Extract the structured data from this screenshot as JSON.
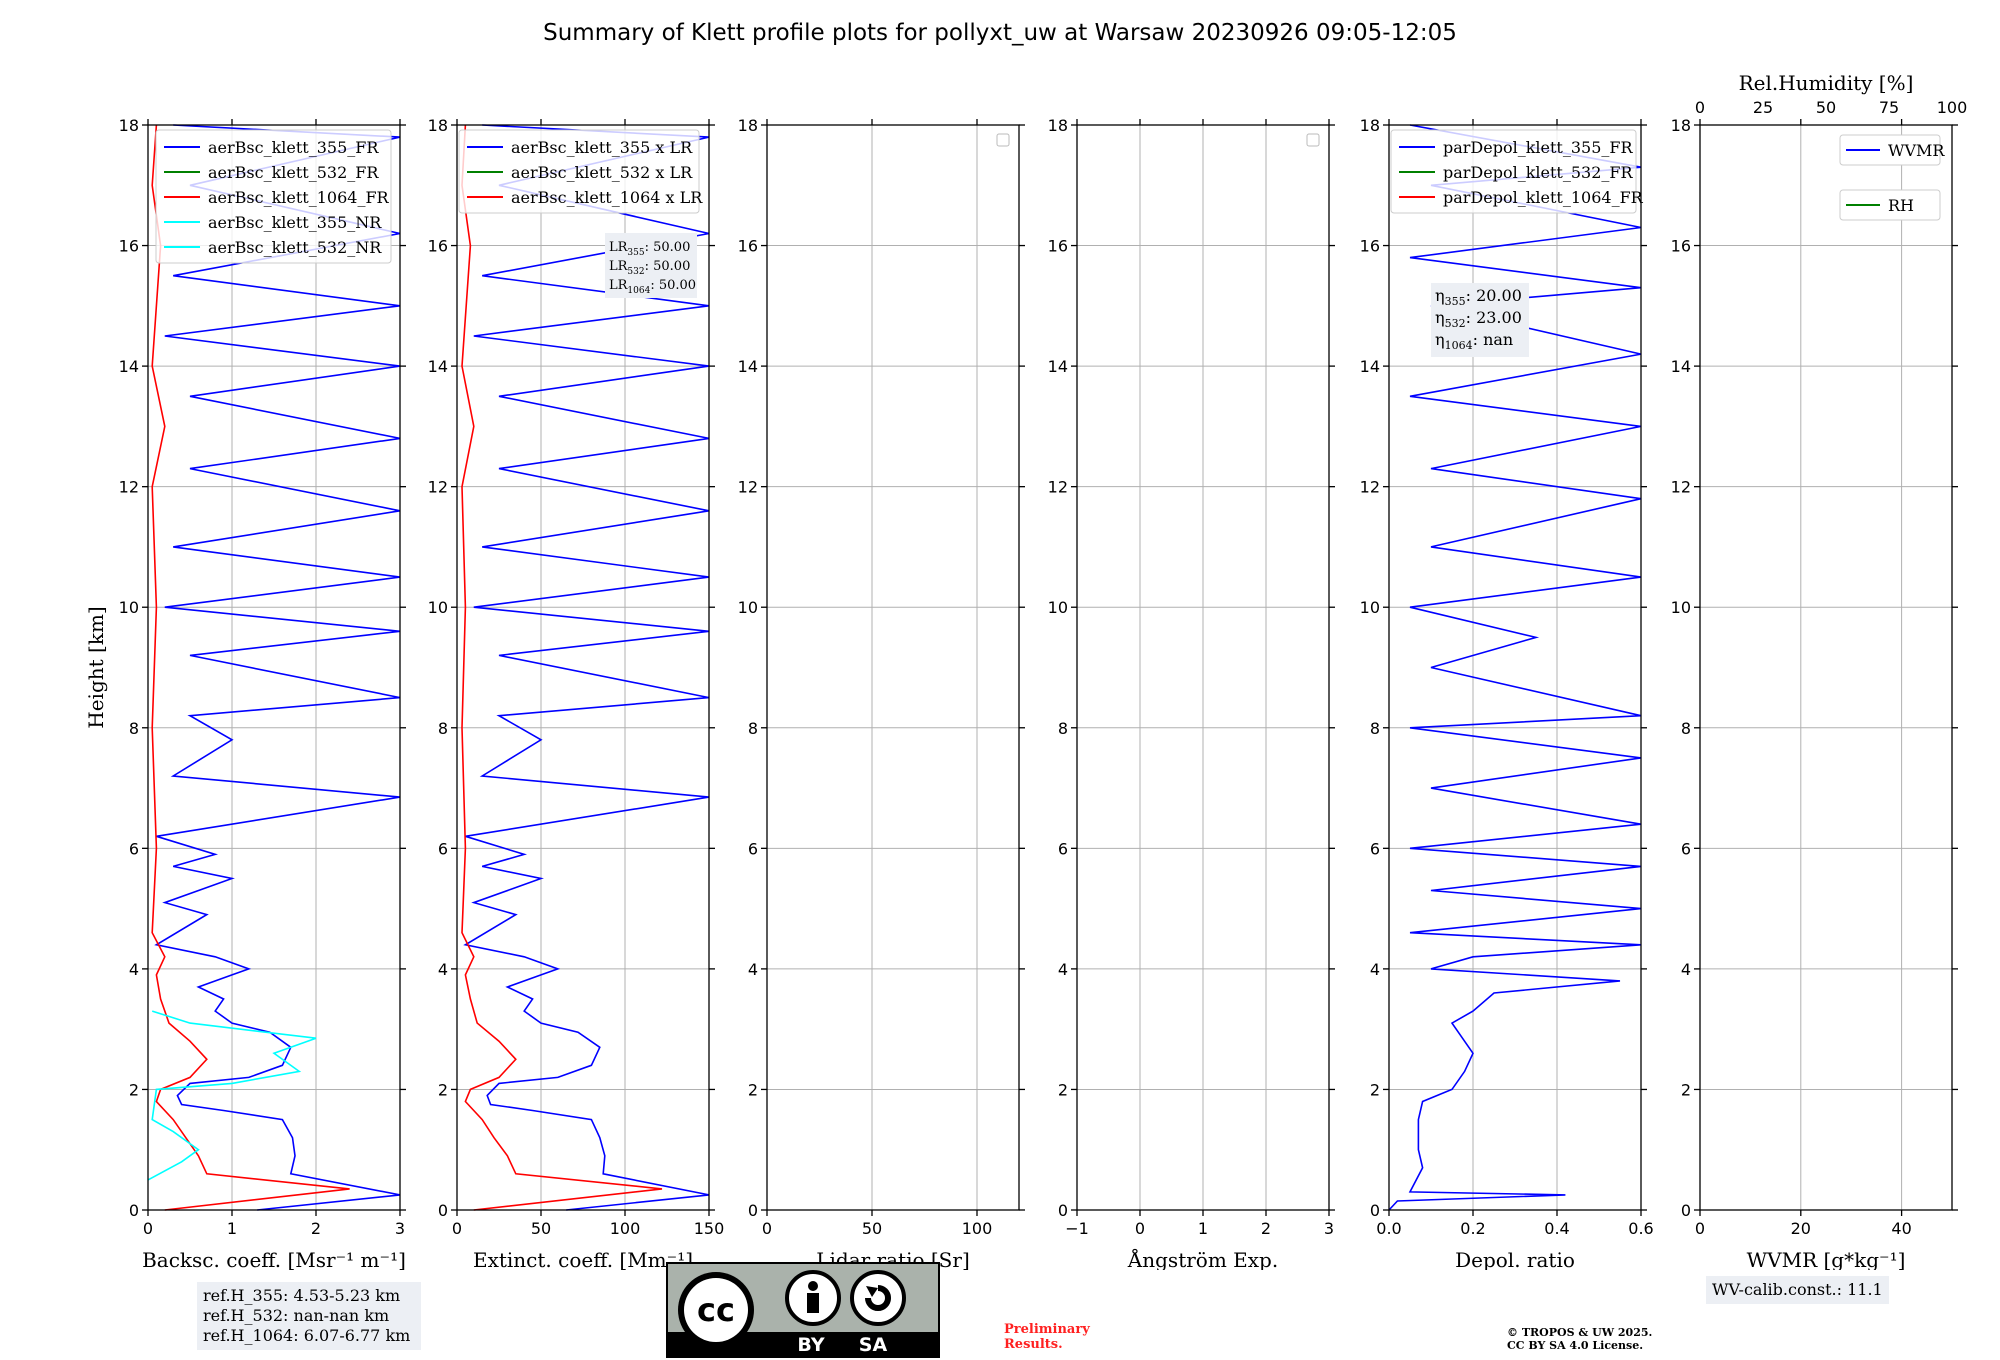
{
  "title": "Summary of Klett profile plots for pollyxt_uw at Warsaw 20230926 09:05-12:05",
  "colors": {
    "blue": "#0000ff",
    "green": "#008000",
    "red": "#ff0000",
    "cyan": "#00ffff",
    "grid": "#b0b0b0"
  },
  "chart_data": [
    {
      "type": "line",
      "id": "backscatter",
      "xlabel": "Backsc. coeff. [Msr⁻¹ m⁻¹]",
      "ylabel": "Height [km]",
      "xlim": [
        0,
        3
      ],
      "xticks": [
        "0",
        "1",
        "2",
        "3"
      ],
      "ylim": [
        0,
        18
      ],
      "yticks": [
        "0",
        "2",
        "4",
        "6",
        "8",
        "10",
        "12",
        "14",
        "16",
        "18"
      ],
      "legend": {
        "position": "top",
        "entries": [
          "aerBsc_klett_355_FR",
          "aerBsc_klett_532_FR",
          "aerBsc_klett_1064_FR",
          "aerBsc_klett_355_NR",
          "aerBsc_klett_532_NR"
        ]
      },
      "series": [
        {
          "name": "aerBsc_klett_355_FR",
          "color": "blue",
          "points": [
            [
              1.3,
              0
            ],
            [
              3,
              0.25
            ],
            [
              1.7,
              0.6
            ],
            [
              1.75,
              0.9
            ],
            [
              1.72,
              1.2
            ],
            [
              1.6,
              1.5
            ],
            [
              0.9,
              1.65
            ],
            [
              0.4,
              1.75
            ],
            [
              0.35,
              1.9
            ],
            [
              0.5,
              2.1
            ],
            [
              1.2,
              2.2
            ],
            [
              1.6,
              2.4
            ],
            [
              1.7,
              2.7
            ],
            [
              1.45,
              2.95
            ],
            [
              1.0,
              3.1
            ],
            [
              0.8,
              3.3
            ],
            [
              0.9,
              3.5
            ],
            [
              0.6,
              3.7
            ],
            [
              1.0,
              3.9
            ],
            [
              1.2,
              4.0
            ],
            [
              0.8,
              4.2
            ],
            [
              0.1,
              4.4
            ],
            [
              0.7,
              4.9
            ],
            [
              0.2,
              5.1
            ],
            [
              1.0,
              5.5
            ],
            [
              0.3,
              5.7
            ],
            [
              0.8,
              5.9
            ],
            [
              0.1,
              6.2
            ],
            [
              3.0,
              6.85
            ],
            [
              0.3,
              7.2
            ],
            [
              1.0,
              7.8
            ],
            [
              0.5,
              8.2
            ],
            [
              3,
              8.5
            ],
            [
              0.5,
              9.2
            ],
            [
              3,
              9.6
            ],
            [
              0.2,
              10.0
            ],
            [
              3,
              10.5
            ],
            [
              0.3,
              11.0
            ],
            [
              3,
              11.6
            ],
            [
              0.5,
              12.3
            ],
            [
              3,
              12.8
            ],
            [
              0.5,
              13.5
            ],
            [
              3,
              14.0
            ],
            [
              0.2,
              14.5
            ],
            [
              3,
              15.0
            ],
            [
              0.3,
              15.5
            ],
            [
              3,
              16.2
            ],
            [
              0.5,
              17.0
            ],
            [
              3,
              17.8
            ],
            [
              0.3,
              18
            ]
          ]
        },
        {
          "name": "aerBsc_klett_532_FR",
          "color": "green",
          "points": []
        },
        {
          "name": "aerBsc_klett_1064_FR",
          "color": "red",
          "points": [
            [
              0.2,
              0
            ],
            [
              2.4,
              0.35
            ],
            [
              0.7,
              0.6
            ],
            [
              0.6,
              0.9
            ],
            [
              0.45,
              1.2
            ],
            [
              0.3,
              1.5
            ],
            [
              0.1,
              1.8
            ],
            [
              0.15,
              2.0
            ],
            [
              0.5,
              2.2
            ],
            [
              0.7,
              2.5
            ],
            [
              0.5,
              2.8
            ],
            [
              0.25,
              3.1
            ],
            [
              0.15,
              3.5
            ],
            [
              0.1,
              3.9
            ],
            [
              0.2,
              4.2
            ],
            [
              0.05,
              4.6
            ],
            [
              0.1,
              6
            ],
            [
              0.05,
              8
            ],
            [
              0.1,
              10
            ],
            [
              0.05,
              12
            ],
            [
              0.2,
              13
            ],
            [
              0.05,
              14
            ],
            [
              0.15,
              16
            ],
            [
              0.05,
              17
            ],
            [
              0.1,
              18
            ]
          ]
        },
        {
          "name": "aerBsc_klett_355_NR",
          "color": "cyan",
          "points": [
            [
              0,
              0.5
            ],
            [
              0.4,
              0.8
            ],
            [
              0.6,
              1.0
            ],
            [
              0.3,
              1.3
            ],
            [
              0.05,
              1.5
            ],
            [
              0.1,
              2.0
            ],
            [
              1.0,
              2.1
            ],
            [
              1.8,
              2.3
            ],
            [
              1.5,
              2.6
            ],
            [
              2.0,
              2.85
            ],
            [
              0.5,
              3.1
            ],
            [
              0.05,
              3.3
            ]
          ]
        },
        {
          "name": "aerBsc_klett_532_NR",
          "color": "cyan",
          "points": []
        }
      ]
    },
    {
      "type": "line",
      "id": "extinction",
      "xlabel": "Extinct. coeff. [Mm⁻¹]",
      "xlim": [
        0,
        150
      ],
      "xticks": [
        "0",
        "50",
        "100",
        "150"
      ],
      "ylim": [
        0,
        18
      ],
      "yticks": [
        "0",
        "2",
        "4",
        "6",
        "8",
        "10",
        "12",
        "14",
        "16",
        "18"
      ],
      "legend": {
        "position": "top-left",
        "entries": [
          "aerBsc_klett_355 x LR",
          "aerBsc_klett_532 x LR",
          "aerBsc_klett_1064 x LR"
        ]
      },
      "annotation": [
        "LR355: 50.00",
        "LR532: 50.00",
        "LR1064: 50.00"
      ],
      "series": [
        {
          "name": "aerBsc_klett_355 x LR",
          "color": "blue",
          "points": [
            [
              65,
              0
            ],
            [
              150,
              0.25
            ],
            [
              87,
              0.6
            ],
            [
              88,
              0.9
            ],
            [
              85,
              1.2
            ],
            [
              80,
              1.5
            ],
            [
              45,
              1.65
            ],
            [
              20,
              1.75
            ],
            [
              18,
              1.9
            ],
            [
              25,
              2.1
            ],
            [
              60,
              2.2
            ],
            [
              80,
              2.4
            ],
            [
              85,
              2.7
            ],
            [
              72,
              2.95
            ],
            [
              50,
              3.1
            ],
            [
              40,
              3.3
            ],
            [
              45,
              3.5
            ],
            [
              30,
              3.7
            ],
            [
              50,
              3.9
            ],
            [
              60,
              4.0
            ],
            [
              40,
              4.2
            ],
            [
              5,
              4.4
            ],
            [
              35,
              4.9
            ],
            [
              10,
              5.1
            ],
            [
              50,
              5.5
            ],
            [
              15,
              5.7
            ],
            [
              40,
              5.9
            ],
            [
              5,
              6.2
            ],
            [
              150,
              6.85
            ],
            [
              15,
              7.2
            ],
            [
              50,
              7.8
            ],
            [
              25,
              8.2
            ],
            [
              150,
              8.5
            ],
            [
              25,
              9.2
            ],
            [
              150,
              9.6
            ],
            [
              10,
              10.0
            ],
            [
              150,
              10.5
            ],
            [
              15,
              11.0
            ],
            [
              150,
              11.6
            ],
            [
              25,
              12.3
            ],
            [
              150,
              12.8
            ],
            [
              25,
              13.5
            ],
            [
              150,
              14.0
            ],
            [
              10,
              14.5
            ],
            [
              150,
              15.0
            ],
            [
              15,
              15.5
            ],
            [
              150,
              16.2
            ],
            [
              25,
              17.0
            ],
            [
              150,
              17.8
            ],
            [
              15,
              18
            ]
          ]
        },
        {
          "name": "aerBsc_klett_532 x LR",
          "color": "green",
          "points": []
        },
        {
          "name": "aerBsc_klett_1064 x LR",
          "color": "red",
          "points": [
            [
              10,
              0
            ],
            [
              122,
              0.35
            ],
            [
              35,
              0.6
            ],
            [
              30,
              0.9
            ],
            [
              22,
              1.2
            ],
            [
              15,
              1.5
            ],
            [
              5,
              1.8
            ],
            [
              8,
              2.0
            ],
            [
              25,
              2.2
            ],
            [
              35,
              2.5
            ],
            [
              25,
              2.8
            ],
            [
              12,
              3.1
            ],
            [
              8,
              3.5
            ],
            [
              5,
              3.9
            ],
            [
              10,
              4.2
            ],
            [
              3,
              4.6
            ],
            [
              5,
              6
            ],
            [
              3,
              8
            ],
            [
              5,
              10
            ],
            [
              3,
              12
            ],
            [
              10,
              13
            ],
            [
              3,
              14
            ],
            [
              8,
              16
            ],
            [
              3,
              17
            ],
            [
              5,
              18
            ]
          ]
        }
      ]
    },
    {
      "type": "line",
      "id": "lidar-ratio",
      "xlabel": "Lidar ratio [Sr]",
      "xlim": [
        0,
        120
      ],
      "xticks": [
        "0",
        "50",
        "100"
      ],
      "ylim": [
        0,
        18
      ],
      "yticks": [
        "0",
        "2",
        "4",
        "6",
        "8",
        "10",
        "12",
        "14",
        "16",
        "18"
      ],
      "series": []
    },
    {
      "type": "line",
      "id": "angstrom",
      "xlabel": "Ångström Exp.",
      "xlim": [
        -1,
        3
      ],
      "xticks": [
        "−1",
        "0",
        "1",
        "2",
        "3"
      ],
      "ylim": [
        0,
        18
      ],
      "yticks": [
        "0",
        "2",
        "4",
        "6",
        "8",
        "10",
        "12",
        "14",
        "16",
        "18"
      ],
      "series": []
    },
    {
      "type": "line",
      "id": "depol",
      "xlabel": "Depol. ratio",
      "xlim": [
        0,
        0.6
      ],
      "xticks": [
        "0.0",
        "0.2",
        "0.4",
        "0.6"
      ],
      "ylim": [
        0,
        18
      ],
      "yticks": [
        "0",
        "2",
        "4",
        "6",
        "8",
        "10",
        "12",
        "14",
        "16",
        "18"
      ],
      "legend": {
        "position": "top-left",
        "entries": [
          "parDepol_klett_355_FR",
          "parDepol_klett_532_FR",
          "parDepol_klett_1064_FR"
        ]
      },
      "annotation": [
        "η355: 20.00",
        "η532: 23.00",
        "η1064: nan"
      ],
      "series": [
        {
          "name": "parDepol_klett_355_FR",
          "color": "blue",
          "points": [
            [
              0.0,
              0
            ],
            [
              0.02,
              0.15
            ],
            [
              0.42,
              0.25
            ],
            [
              0.05,
              0.3
            ],
            [
              0.08,
              0.7
            ],
            [
              0.07,
              1.0
            ],
            [
              0.07,
              1.5
            ],
            [
              0.08,
              1.8
            ],
            [
              0.15,
              2.0
            ],
            [
              0.18,
              2.3
            ],
            [
              0.2,
              2.6
            ],
            [
              0.17,
              2.9
            ],
            [
              0.15,
              3.1
            ],
            [
              0.2,
              3.3
            ],
            [
              0.25,
              3.6
            ],
            [
              0.55,
              3.8
            ],
            [
              0.1,
              4.0
            ],
            [
              0.2,
              4.2
            ],
            [
              0.6,
              4.4
            ],
            [
              0.05,
              4.6
            ],
            [
              0.6,
              5.0
            ],
            [
              0.1,
              5.3
            ],
            [
              0.6,
              5.7
            ],
            [
              0.05,
              6.0
            ],
            [
              0.6,
              6.4
            ],
            [
              0.1,
              7.0
            ],
            [
              0.6,
              7.5
            ],
            [
              0.05,
              8.0
            ],
            [
              0.6,
              8.2
            ],
            [
              0.1,
              9.0
            ],
            [
              0.35,
              9.5
            ],
            [
              0.05,
              10.0
            ],
            [
              0.6,
              10.5
            ],
            [
              0.1,
              11.0
            ],
            [
              0.6,
              11.8
            ],
            [
              0.1,
              12.3
            ],
            [
              0.6,
              13.0
            ],
            [
              0.05,
              13.5
            ],
            [
              0.6,
              14.2
            ],
            [
              0.1,
              15.0
            ],
            [
              0.6,
              15.3
            ],
            [
              0.05,
              15.8
            ],
            [
              0.6,
              16.3
            ],
            [
              0.1,
              17.0
            ],
            [
              0.6,
              17.3
            ],
            [
              0.05,
              18
            ]
          ]
        },
        {
          "name": "parDepol_klett_532_FR",
          "color": "green",
          "points": []
        },
        {
          "name": "parDepol_klett_1064_FR",
          "color": "red",
          "points": []
        }
      ]
    },
    {
      "type": "line",
      "id": "wvmr",
      "xlabel": "WVMR [g*kg⁻¹]",
      "xlim": [
        0,
        50
      ],
      "xticks": [
        "0",
        "20",
        "40"
      ],
      "top_axis": {
        "label": "Rel.Humidity [%]",
        "xlim": [
          0,
          100
        ],
        "xticks": [
          "0",
          "25",
          "50",
          "75",
          "100"
        ]
      },
      "ylim": [
        0,
        18
      ],
      "yticks": [
        "0",
        "2",
        "4",
        "6",
        "8",
        "10",
        "12",
        "14",
        "16",
        "18"
      ],
      "legend": {
        "position": "top-right",
        "entries": [
          "WVMR",
          "RH"
        ]
      },
      "series": [
        {
          "name": "WVMR",
          "color": "blue",
          "points": []
        },
        {
          "name": "RH",
          "color": "green",
          "points": []
        }
      ]
    }
  ],
  "ref_heights": [
    "ref.H_355: 4.53-5.23 km",
    "ref.H_532: nan-nan km",
    "ref.H_1064: 6.07-6.77 km"
  ],
  "wv_calib": "WV-calib.const.: 11.1",
  "license": {
    "badge_by": "BY",
    "badge_sa": "SA",
    "badge_cc": "cc",
    "preliminary": [
      "Preliminary",
      "Results."
    ],
    "copyright": [
      "© TROPOS & UW 2025.",
      "CC BY SA 4.0 License."
    ]
  }
}
